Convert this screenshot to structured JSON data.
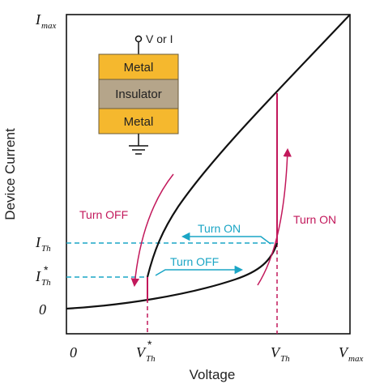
{
  "axes": {
    "y_label": "Device Current",
    "x_label": "Voltage",
    "y_max": {
      "base": "I",
      "sub": "max"
    },
    "y_th": {
      "base": "I",
      "sub": "Th"
    },
    "y_th_star": {
      "base": "I",
      "sub": "Th",
      "sup": "*"
    },
    "y_zero": "0",
    "x_zero": "0",
    "x_th_star": {
      "base": "V",
      "sub": "Th",
      "sup": "*"
    },
    "x_th": {
      "base": "V",
      "sub": "Th"
    },
    "x_max": {
      "base": "V",
      "sub": "max"
    }
  },
  "device": {
    "terminal_label": "V or I",
    "layers": [
      "Metal",
      "Insulator",
      "Metal"
    ],
    "metal_color": "#f5b82e",
    "insulator_color": "#b5a58a"
  },
  "annotations": {
    "turn_off_pink": "Turn OFF",
    "turn_on_pink": "Turn ON",
    "turn_on_cyan": "Turn ON",
    "turn_off_cyan": "Turn OFF",
    "pink_color": "#c2185b",
    "cyan_color": "#1aa5c5"
  }
}
